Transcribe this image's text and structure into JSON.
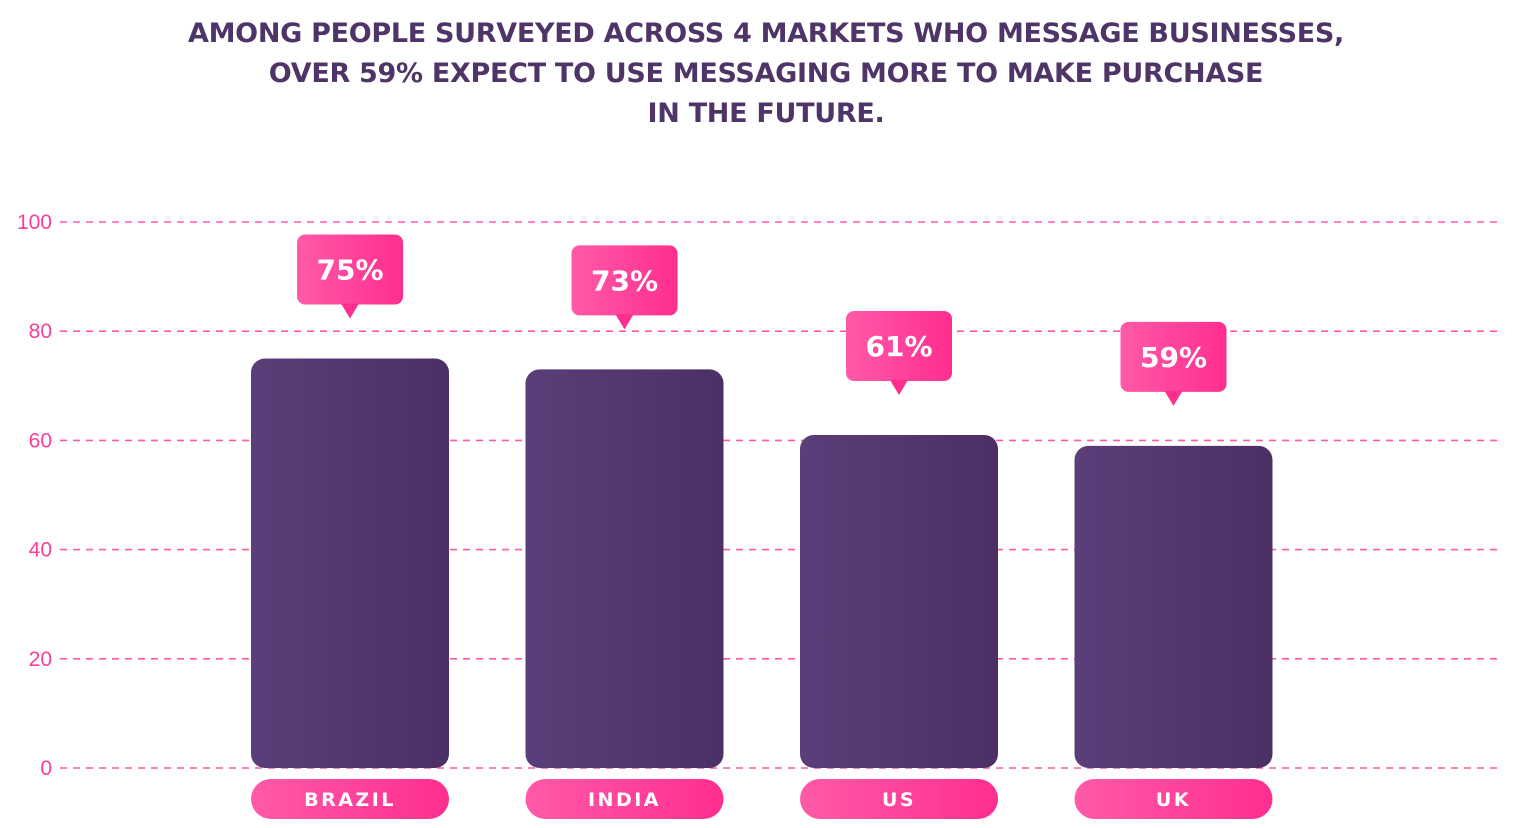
{
  "title_lines": [
    "AMONG PEOPLE SURVEYED ACROSS 4 MARKETS WHO MESSAGE BUSINESSES,",
    "OVER 59% EXPECT TO USE MESSAGING MORE TO MAKE PURCHASE",
    "IN THE FUTURE."
  ],
  "colors": {
    "title": "#4f3468",
    "bar": "#553a74",
    "bar_dark": "#4b3066",
    "accent": "#ff2e8f",
    "accent_light": "#ff5aa8",
    "gridline": "#ff5aa8"
  },
  "chart_data": {
    "type": "bar",
    "categories": [
      "BRAZIL",
      "INDIA",
      "US",
      "UK"
    ],
    "values": [
      75,
      73,
      61,
      59
    ],
    "value_labels": [
      "75%",
      "73%",
      "61%",
      "59%"
    ],
    "y_ticks": [
      "0",
      "20",
      "40",
      "60",
      "80",
      "100"
    ],
    "ylim": [
      0,
      100
    ],
    "grid": "dashed horizontal",
    "legend": "none"
  }
}
